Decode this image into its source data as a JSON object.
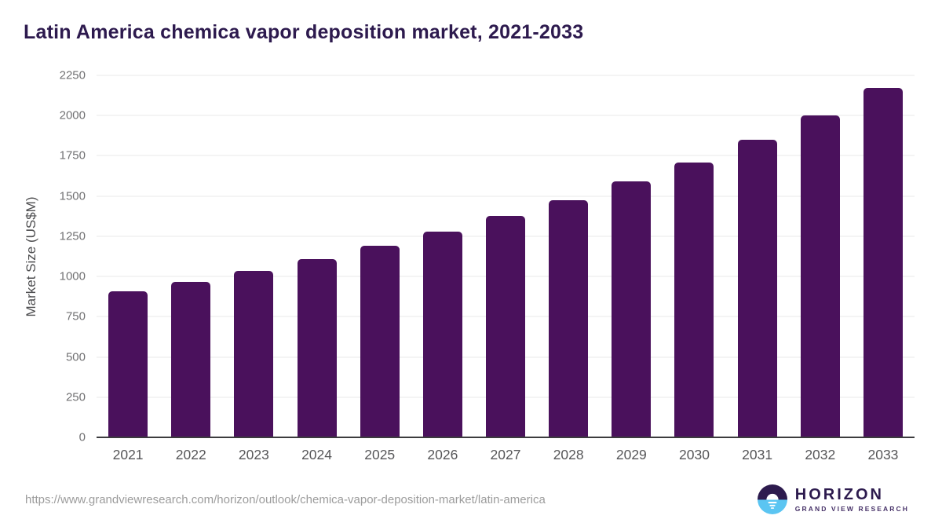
{
  "title": "Latin America chemica vapor deposition market, 2021-2033",
  "chart_data": {
    "type": "bar",
    "title": "Latin America chemica vapor deposition market, 2021-2033",
    "categories": [
      "2021",
      "2022",
      "2023",
      "2024",
      "2025",
      "2026",
      "2027",
      "2028",
      "2029",
      "2030",
      "2031",
      "2032",
      "2033"
    ],
    "values": [
      908,
      967,
      1035,
      1110,
      1190,
      1280,
      1375,
      1475,
      1590,
      1710,
      1850,
      2000,
      2170
    ],
    "xlabel": "",
    "ylabel": "Market Size (US$M)",
    "ylim": [
      0,
      2250
    ],
    "yticks": [
      0,
      250,
      500,
      750,
      1000,
      1250,
      1500,
      1750,
      2000,
      2250
    ],
    "grid": true,
    "legend": false,
    "bar_color": "#4a115c"
  },
  "footer": {
    "source_url": "https://www.grandviewresearch.com/horizon/outlook/chemica-vapor-deposition-market/latin-america",
    "logo": {
      "name": "HORIZON",
      "subtitle": "GRAND VIEW RESEARCH"
    }
  },
  "colors": {
    "bar": "#4a115c",
    "title_text": "#2d1a4e",
    "gridline": "#e9e9e9",
    "axis_line": "#3c3c3e",
    "y_tick_text": "#717173",
    "x_tick_text": "#565658",
    "url_text": "#9c9c9c",
    "logo_dark": "#2d1b4e",
    "logo_blue": "#5bc5f2"
  }
}
